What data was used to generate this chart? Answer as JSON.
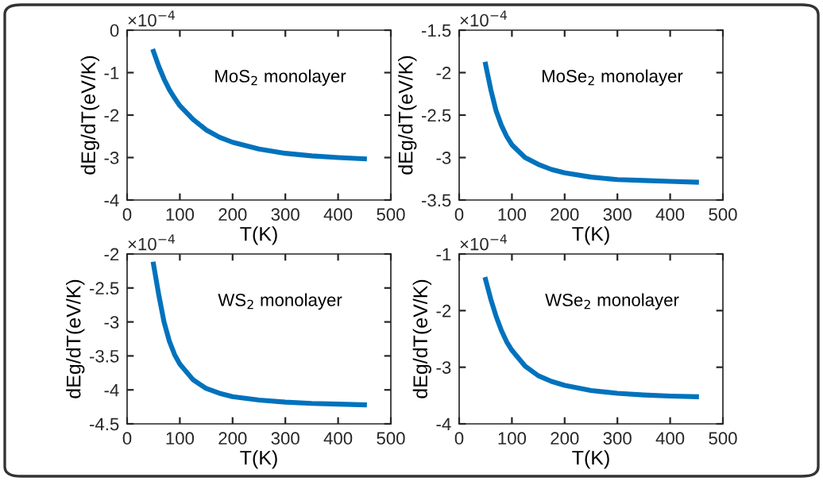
{
  "chart_data": [
    {
      "type": "line",
      "xlabel": "T(K)",
      "ylabel": "dEg/dT(eV/K)",
      "annotations": [
        "MoS$_{2}$ monolayer",
        "×10$^{−4}$"
      ],
      "xlim": [
        0,
        500
      ],
      "xticks": [
        0,
        100,
        200,
        300,
        400,
        500
      ],
      "ylim": [
        -4,
        0
      ],
      "yticks": [
        -4,
        -3,
        -2,
        -1,
        0
      ],
      "grid": false,
      "x": [
        50,
        60,
        70,
        80,
        90,
        100,
        125,
        150,
        175,
        200,
        250,
        300,
        350,
        400,
        450
      ],
      "series": [
        {
          "color": "#0072bd",
          "values": [
            -0.5,
            -0.85,
            -1.15,
            -1.4,
            -1.6,
            -1.78,
            -2.1,
            -2.35,
            -2.52,
            -2.64,
            -2.8,
            -2.9,
            -2.96,
            -3.0,
            -3.03
          ]
        }
      ]
    },
    {
      "type": "line",
      "xlabel": "T(K)",
      "ylabel": "dEg/dT(eV/K)",
      "annotations": [
        "MoSe$_{2}$ monolayer",
        "×10$^{−4}$"
      ],
      "xlim": [
        0,
        500
      ],
      "xticks": [
        0,
        100,
        200,
        300,
        400,
        500
      ],
      "ylim": [
        -3.5,
        -1.5
      ],
      "yticks": [
        -3.5,
        -3,
        -2.5,
        -2,
        -1.5
      ],
      "grid": false,
      "x": [
        50,
        60,
        70,
        80,
        90,
        100,
        125,
        150,
        175,
        200,
        250,
        300,
        350,
        400,
        450
      ],
      "series": [
        {
          "color": "#0072bd",
          "values": [
            -1.9,
            -2.2,
            -2.45,
            -2.62,
            -2.75,
            -2.85,
            -3.0,
            -3.08,
            -3.14,
            -3.18,
            -3.23,
            -3.26,
            -3.27,
            -3.28,
            -3.29
          ]
        }
      ]
    },
    {
      "type": "line",
      "xlabel": "T(K)",
      "ylabel": "dEg/dT(eV/K)",
      "annotations": [
        "WS$_{2}$ monolayer",
        "×10$^{−4}$"
      ],
      "xlim": [
        0,
        500
      ],
      "xticks": [
        0,
        100,
        200,
        300,
        400,
        500
      ],
      "ylim": [
        -4.5,
        -2
      ],
      "yticks": [
        -4.5,
        -4,
        -3.5,
        -3,
        -2.5,
        -2
      ],
      "grid": false,
      "x": [
        50,
        60,
        70,
        80,
        90,
        100,
        125,
        150,
        175,
        200,
        250,
        300,
        350,
        400,
        450
      ],
      "series": [
        {
          "color": "#0072bd",
          "values": [
            -2.15,
            -2.6,
            -3.0,
            -3.28,
            -3.48,
            -3.62,
            -3.85,
            -3.98,
            -4.05,
            -4.1,
            -4.15,
            -4.18,
            -4.2,
            -4.21,
            -4.22
          ]
        }
      ]
    },
    {
      "type": "line",
      "xlabel": "T(K)",
      "ylabel": "dEg/dT(eV/K)",
      "annotations": [
        "WSe$_{2}$ monolayer",
        "×10$^{−4}$"
      ],
      "xlim": [
        0,
        500
      ],
      "xticks": [
        0,
        100,
        200,
        300,
        400,
        500
      ],
      "ylim": [
        -4,
        -1
      ],
      "yticks": [
        -4,
        -3,
        -2,
        -1
      ],
      "grid": false,
      "x": [
        50,
        60,
        70,
        80,
        90,
        100,
        125,
        150,
        175,
        200,
        250,
        300,
        350,
        400,
        450
      ],
      "series": [
        {
          "color": "#0072bd",
          "values": [
            -1.45,
            -1.8,
            -2.1,
            -2.35,
            -2.55,
            -2.7,
            -2.98,
            -3.15,
            -3.25,
            -3.32,
            -3.41,
            -3.46,
            -3.49,
            -3.51,
            -3.52
          ]
        }
      ]
    }
  ]
}
